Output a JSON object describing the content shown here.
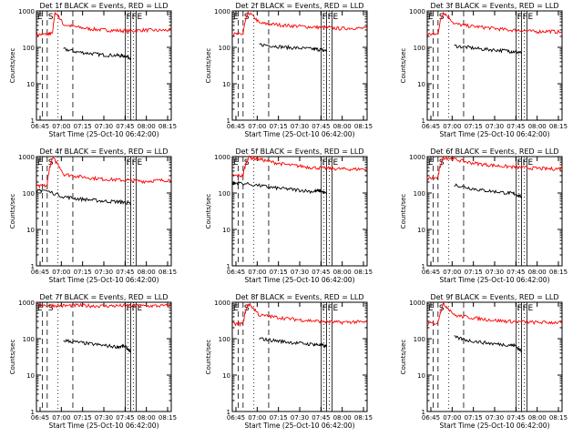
{
  "chart_data": [
    {
      "type": "line",
      "title": "Det  1f  BLACK = Events, RED = LLD",
      "xlabel": "Start Time (25-Oct-10 06:42:00)",
      "ylabel": "Counts/sec",
      "xticks": [
        "06:45",
        "07:00",
        "07:15",
        "07:30",
        "07:45",
        "08:00",
        "08:15"
      ],
      "yticks": [
        "1",
        "10",
        "100",
        "1000"
      ],
      "ylim": [
        1,
        1000
      ],
      "yscale": "log",
      "series": [
        {
          "name": "LLD",
          "color": "#ff0000",
          "x": [
            0.0,
            0.08,
            0.12,
            0.14,
            0.2,
            0.3,
            0.4,
            0.5,
            0.6,
            0.7,
            0.8,
            0.9,
            1.0
          ],
          "y": [
            220,
            230,
            240,
            900,
            420,
            360,
            320,
            300,
            290,
            280,
            300,
            290,
            300
          ]
        },
        {
          "name": "Events",
          "color": "#000000",
          "x": [
            0.2,
            0.3,
            0.4,
            0.5,
            0.6,
            0.65,
            0.7
          ],
          "y": [
            90,
            75,
            68,
            62,
            60,
            58,
            52
          ]
        }
      ],
      "markers": [
        {
          "label": "E",
          "x": 0.0
        },
        {
          "label": "S",
          "x": 0.08
        },
        {
          "label": "F",
          "x": 0.66
        },
        {
          "label": "F",
          "x": 0.7
        },
        {
          "label": "E",
          "x": 0.74
        }
      ]
    },
    {
      "type": "line",
      "title": "Det  2f  BLACK = Events, RED = LLD",
      "xlabel": "Start Time (25-Oct-10 06:42:00)",
      "ylabel": "Counts/sec",
      "xticks": [
        "06:45",
        "07:00",
        "07:15",
        "07:30",
        "07:45",
        "08:00",
        "08:15"
      ],
      "yticks": [
        "1",
        "10",
        "100",
        "1000"
      ],
      "ylim": [
        1,
        1000
      ],
      "yscale": "log",
      "series": [
        {
          "name": "LLD",
          "color": "#ff0000",
          "x": [
            0.0,
            0.08,
            0.12,
            0.2,
            0.3,
            0.4,
            0.5,
            0.6,
            0.7,
            0.8,
            0.9,
            1.0
          ],
          "y": [
            230,
            230,
            900,
            460,
            430,
            400,
            380,
            360,
            350,
            330,
            340,
            330
          ]
        },
        {
          "name": "Events",
          "color": "#000000",
          "x": [
            0.2,
            0.3,
            0.4,
            0.5,
            0.6,
            0.65,
            0.7
          ],
          "y": [
            120,
            110,
            100,
            95,
            90,
            88,
            80
          ]
        }
      ],
      "markers": [
        {
          "label": "E",
          "x": 0.0
        },
        {
          "label": "S",
          "x": 0.08
        },
        {
          "label": "F",
          "x": 0.66
        },
        {
          "label": "F",
          "x": 0.7
        },
        {
          "label": "E",
          "x": 0.74
        }
      ]
    },
    {
      "type": "line",
      "title": "Det  3f  BLACK = Events, RED = LLD",
      "xlabel": "Start Time (25-Oct-10 06:42:00)",
      "ylabel": "Counts/sec",
      "xticks": [
        "06:45",
        "07:00",
        "07:15",
        "07:30",
        "07:45",
        "08:00",
        "08:15"
      ],
      "yticks": [
        "1",
        "10",
        "100",
        "1000"
      ],
      "ylim": [
        1,
        1000
      ],
      "yscale": "log",
      "series": [
        {
          "name": "LLD",
          "color": "#ff0000",
          "x": [
            0.0,
            0.08,
            0.12,
            0.2,
            0.3,
            0.4,
            0.5,
            0.6,
            0.7,
            0.8,
            0.9,
            1.0
          ],
          "y": [
            230,
            230,
            900,
            440,
            390,
            360,
            330,
            300,
            290,
            270,
            280,
            260
          ]
        },
        {
          "name": "Events",
          "color": "#000000",
          "x": [
            0.2,
            0.3,
            0.4,
            0.5,
            0.6,
            0.65,
            0.7
          ],
          "y": [
            110,
            100,
            90,
            85,
            80,
            75,
            70
          ]
        }
      ],
      "markers": [
        {
          "label": "E",
          "x": 0.0
        },
        {
          "label": "S",
          "x": 0.08
        },
        {
          "label": "F",
          "x": 0.66
        },
        {
          "label": "F",
          "x": 0.7
        },
        {
          "label": "E",
          "x": 0.74
        }
      ]
    },
    {
      "type": "line",
      "title": "Det  4f  BLACK = Events, RED = LLD",
      "xlabel": "Start Time (25-Oct-10 06:42:00)",
      "ylabel": "Counts/sec",
      "xticks": [
        "06:45",
        "07:00",
        "07:15",
        "07:30",
        "07:45",
        "08:00",
        "08:15"
      ],
      "yticks": [
        "1",
        "10",
        "100",
        "1000"
      ],
      "ylim": [
        1,
        1000
      ],
      "yscale": "log",
      "series": [
        {
          "name": "LLD",
          "color": "#ff0000",
          "x": [
            0.0,
            0.08,
            0.12,
            0.2,
            0.3,
            0.4,
            0.5,
            0.6,
            0.7,
            0.8,
            0.9,
            1.0
          ],
          "y": [
            150,
            160,
            900,
            330,
            290,
            260,
            240,
            230,
            220,
            210,
            220,
            230
          ]
        },
        {
          "name": "Events",
          "color": "#000000",
          "x": [
            0.0,
            0.05,
            0.2,
            0.3,
            0.4,
            0.5,
            0.6,
            0.65,
            0.7
          ],
          "y": [
            110,
            120,
            80,
            70,
            65,
            60,
            58,
            56,
            50
          ]
        }
      ],
      "markers": [
        {
          "label": "E",
          "x": 0.0
        },
        {
          "label": "S",
          "x": 0.08
        },
        {
          "label": "F",
          "x": 0.66
        },
        {
          "label": "F",
          "x": 0.7
        },
        {
          "label": "E",
          "x": 0.74
        }
      ]
    },
    {
      "type": "line",
      "title": "Det  5f  BLACK = Events, RED = LLD",
      "xlabel": "Start Time (25-Oct-10 06:42:00)",
      "ylabel": "Counts/sec",
      "xticks": [
        "06:45",
        "07:00",
        "07:15",
        "07:30",
        "07:45",
        "08:00",
        "08:15"
      ],
      "yticks": [
        "1",
        "10",
        "100",
        "1000"
      ],
      "ylim": [
        1,
        1000
      ],
      "yscale": "log",
      "series": [
        {
          "name": "LLD",
          "color": "#ff0000",
          "x": [
            0.0,
            0.08,
            0.12,
            0.2,
            0.3,
            0.4,
            0.5,
            0.6,
            0.7,
            0.8,
            0.9,
            1.0
          ],
          "y": [
            300,
            300,
            950,
            850,
            700,
            600,
            550,
            500,
            480,
            460,
            450,
            460
          ]
        },
        {
          "name": "Events",
          "color": "#000000",
          "x": [
            0.0,
            0.05,
            0.2,
            0.3,
            0.4,
            0.5,
            0.6,
            0.65,
            0.7
          ],
          "y": [
            180,
            190,
            160,
            140,
            130,
            120,
            110,
            115,
            95
          ]
        }
      ],
      "markers": [
        {
          "label": "E",
          "x": 0.0
        },
        {
          "label": "S",
          "x": 0.08
        },
        {
          "label": "F",
          "x": 0.66
        },
        {
          "label": "F",
          "x": 0.7
        },
        {
          "label": "E",
          "x": 0.74
        }
      ]
    },
    {
      "type": "line",
      "title": "Det  6f  BLACK = Events, RED = LLD",
      "xlabel": "Start Time (25-Oct-10 06:42:00)",
      "ylabel": "Counts/sec",
      "xticks": [
        "06:45",
        "07:00",
        "07:15",
        "07:30",
        "07:45",
        "08:00",
        "08:15"
      ],
      "yticks": [
        "1",
        "10",
        "100",
        "1000"
      ],
      "ylim": [
        1,
        1000
      ],
      "yscale": "log",
      "series": [
        {
          "name": "LLD",
          "color": "#ff0000",
          "x": [
            0.0,
            0.08,
            0.12,
            0.2,
            0.3,
            0.4,
            0.5,
            0.6,
            0.7,
            0.8,
            0.9,
            1.0
          ],
          "y": [
            250,
            260,
            950,
            850,
            700,
            620,
            570,
            530,
            500,
            480,
            460,
            470
          ]
        },
        {
          "name": "Events",
          "color": "#000000",
          "x": [
            0.2,
            0.3,
            0.4,
            0.5,
            0.6,
            0.65,
            0.7
          ],
          "y": [
            170,
            140,
            120,
            110,
            100,
            95,
            80
          ]
        }
      ],
      "markers": [
        {
          "label": "E",
          "x": 0.0
        },
        {
          "label": "S",
          "x": 0.08
        },
        {
          "label": "F",
          "x": 0.66
        },
        {
          "label": "F",
          "x": 0.7
        },
        {
          "label": "E",
          "x": 0.74
        }
      ]
    },
    {
      "type": "line",
      "title": "Det  7f  BLACK = Events, RED = LLD",
      "xlabel": "Start Time (25-Oct-10 06:42:00)",
      "ylabel": "Counts/sec",
      "xticks": [
        "06:45",
        "07:00",
        "07:15",
        "07:30",
        "07:45",
        "08:00",
        "08:15"
      ],
      "yticks": [
        "1",
        "10",
        "100",
        "1000"
      ],
      "ylim": [
        1,
        1000
      ],
      "yscale": "log",
      "series": [
        {
          "name": "LLD",
          "color": "#ff0000",
          "x": [
            0.0,
            0.1,
            0.2,
            0.3,
            0.4,
            0.5,
            0.6,
            0.7,
            0.8,
            0.9,
            1.0
          ],
          "y": [
            850,
            820,
            800,
            820,
            800,
            790,
            800,
            810,
            790,
            800,
            800
          ]
        },
        {
          "name": "Events",
          "color": "#000000",
          "x": [
            0.2,
            0.3,
            0.4,
            0.5,
            0.6,
            0.65,
            0.7
          ],
          "y": [
            90,
            80,
            72,
            65,
            60,
            62,
            45
          ]
        }
      ],
      "markers": [
        {
          "label": "E",
          "x": 0.0
        },
        {
          "label": "S",
          "x": 0.08
        },
        {
          "label": "F",
          "x": 0.66
        },
        {
          "label": "F",
          "x": 0.7
        },
        {
          "label": "E",
          "x": 0.74
        }
      ]
    },
    {
      "type": "line",
      "title": "Det  8f  BLACK = Events, RED = LLD",
      "xlabel": "Start Time (25-Oct-10 06:42:00)",
      "ylabel": "Counts/sec",
      "xticks": [
        "06:45",
        "07:00",
        "07:15",
        "07:30",
        "07:45",
        "08:00",
        "08:15"
      ],
      "yticks": [
        "1",
        "10",
        "100",
        "1000"
      ],
      "ylim": [
        1,
        1000
      ],
      "yscale": "log",
      "series": [
        {
          "name": "LLD",
          "color": "#ff0000",
          "x": [
            0.0,
            0.08,
            0.12,
            0.2,
            0.3,
            0.4,
            0.5,
            0.6,
            0.7,
            0.8,
            0.9,
            1.0
          ],
          "y": [
            250,
            260,
            900,
            440,
            400,
            360,
            330,
            310,
            290,
            280,
            290,
            280
          ]
        },
        {
          "name": "Events",
          "color": "#000000",
          "x": [
            0.2,
            0.3,
            0.4,
            0.5,
            0.6,
            0.65,
            0.7
          ],
          "y": [
            100,
            90,
            82,
            75,
            70,
            68,
            60
          ]
        }
      ],
      "markers": [
        {
          "label": "E",
          "x": 0.0
        },
        {
          "label": "S",
          "x": 0.08
        },
        {
          "label": "F",
          "x": 0.66
        },
        {
          "label": "F",
          "x": 0.7
        },
        {
          "label": "E",
          "x": 0.74
        }
      ]
    },
    {
      "type": "line",
      "title": "Det  9f  BLACK = Events, RED = LLD",
      "xlabel": "Start Time (25-Oct-10 06:42:00)",
      "ylabel": "Counts/sec",
      "xticks": [
        "06:45",
        "07:00",
        "07:15",
        "07:30",
        "07:45",
        "08:00",
        "08:15"
      ],
      "yticks": [
        "1",
        "10",
        "100",
        "1000"
      ],
      "ylim": [
        1,
        1000
      ],
      "yscale": "log",
      "series": [
        {
          "name": "LLD",
          "color": "#ff0000",
          "x": [
            0.0,
            0.08,
            0.12,
            0.2,
            0.3,
            0.4,
            0.5,
            0.6,
            0.7,
            0.8,
            0.9,
            1.0
          ],
          "y": [
            260,
            270,
            900,
            440,
            390,
            350,
            320,
            300,
            290,
            280,
            280,
            280
          ]
        },
        {
          "name": "Events",
          "color": "#000000",
          "x": [
            0.2,
            0.3,
            0.4,
            0.5,
            0.6,
            0.65,
            0.7
          ],
          "y": [
            110,
            90,
            80,
            72,
            68,
            65,
            45
          ]
        }
      ],
      "markers": [
        {
          "label": "E",
          "x": 0.0
        },
        {
          "label": "S",
          "x": 0.08
        },
        {
          "label": "F",
          "x": 0.66
        },
        {
          "label": "F",
          "x": 0.7
        },
        {
          "label": "E",
          "x": 0.74
        }
      ]
    }
  ]
}
